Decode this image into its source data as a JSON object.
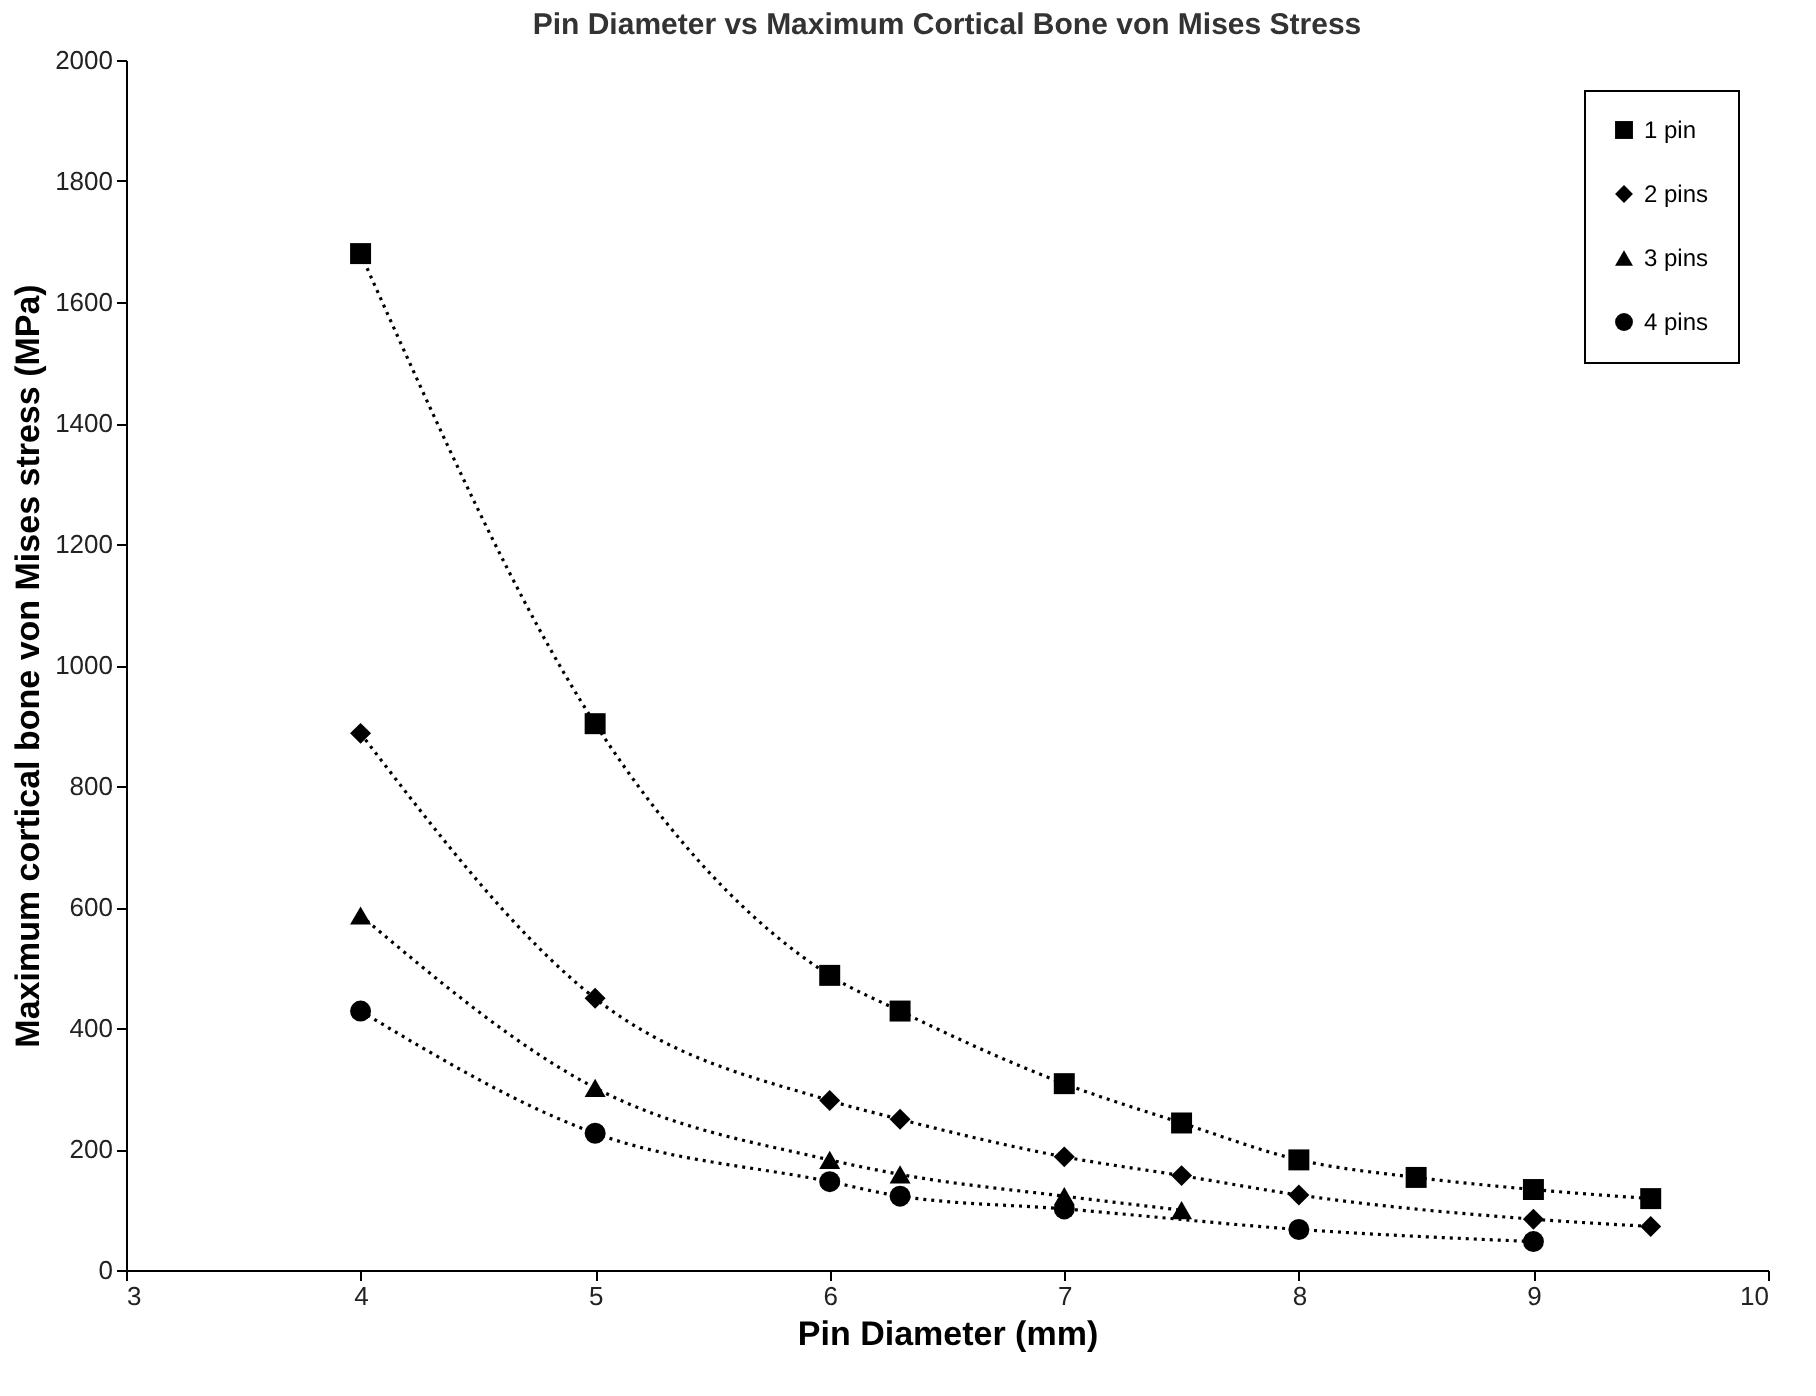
{
  "chart_data": {
    "type": "line",
    "title": "Pin Diameter vs Maximum Cortical Bone von Mises Stress",
    "xlabel": "Pin Diameter (mm)",
    "ylabel": "Maximum cortical bone von Mises stress (MPa)",
    "xlim": [
      3,
      10
    ],
    "xticks": [
      3,
      4,
      5,
      6,
      7,
      8,
      9,
      10
    ],
    "ylim": [
      0,
      2000
    ],
    "yticks": [
      0,
      200,
      400,
      600,
      800,
      1000,
      1200,
      1400,
      1600,
      1800,
      2000
    ],
    "grid": false,
    "legend": "top right",
    "line_style": "dotted",
    "series": [
      {
        "name": "1 pin",
        "color": "#000000",
        "marker": "square",
        "x": [
          4,
          5,
          6,
          6.3,
          7,
          7.5,
          8,
          8.5,
          9,
          9.5
        ],
        "values": [
          1680,
          903,
          487,
          428,
          308,
          243,
          182,
          153,
          133,
          118
        ]
      },
      {
        "name": "2 pins",
        "color": "#000000",
        "marker": "diamond",
        "x": [
          4,
          5,
          6,
          6.3,
          7,
          7.5,
          8,
          9,
          9.5
        ],
        "values": [
          887,
          449,
          280,
          249,
          187,
          156,
          124,
          84,
          72
        ]
      },
      {
        "name": "3 pins",
        "color": "#000000",
        "marker": "triangle",
        "x": [
          4,
          5,
          6,
          6.3,
          7,
          7.5
        ],
        "values": [
          586,
          301,
          182,
          158,
          122,
          99
        ]
      },
      {
        "name": "4 pins",
        "color": "#000000",
        "marker": "circle",
        "x": [
          4,
          5,
          6,
          6.3,
          7,
          8,
          9
        ],
        "values": [
          428,
          226,
          146,
          122,
          101,
          67,
          47
        ]
      }
    ]
  }
}
